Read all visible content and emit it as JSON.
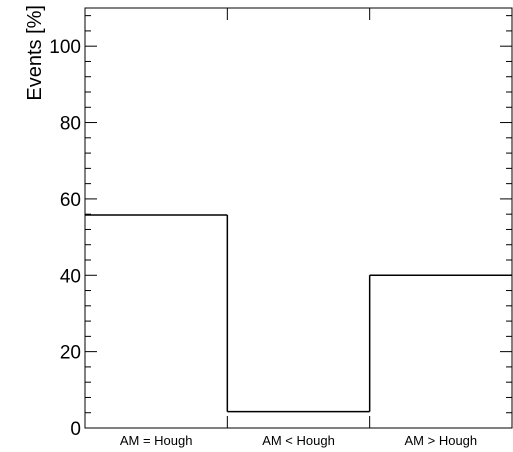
{
  "chart_data": {
    "type": "bar",
    "style": "step-histogram",
    "title": "",
    "xlabel": "",
    "ylabel": "Events [%]",
    "categories": [
      "AM = Hough",
      "AM < Hough",
      "AM > Hough"
    ],
    "values": [
      55.8,
      4.3,
      40.0
    ],
    "ylim": [
      0,
      110
    ],
    "yticks_major": [
      0,
      20,
      40,
      60,
      80,
      100
    ],
    "yticks_minor_step": 4,
    "grid": false,
    "legend": "none",
    "colors": {
      "line": "#000000",
      "background": "#ffffff"
    }
  }
}
